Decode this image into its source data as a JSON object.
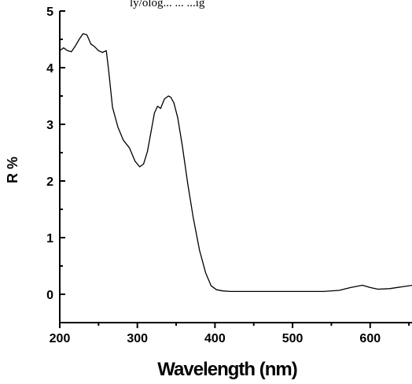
{
  "chart_data": {
    "type": "line",
    "top_text": "ly/olog... ... ...ig",
    "xlabel": "Wavelength (nm)",
    "ylabel": "R %",
    "xlim": [
      200,
      660
    ],
    "ylim": [
      -0.5,
      5
    ],
    "x_ticks": [
      200,
      300,
      400,
      500,
      600
    ],
    "y_ticks": [
      0,
      1,
      2,
      3,
      4,
      5
    ],
    "grid": false,
    "series": [
      {
        "x": [
          200,
          205,
          210,
          215,
          220,
          225,
          230,
          235,
          240,
          245,
          250,
          255,
          260,
          263,
          268,
          275,
          282,
          290,
          297,
          303,
          308,
          313,
          318,
          322,
          326,
          330,
          335,
          340,
          343,
          347,
          352,
          358,
          365,
          372,
          380,
          388,
          395,
          402,
          410,
          420,
          440,
          460,
          500,
          540,
          560,
          575,
          590,
          600,
          610,
          625,
          640,
          660
        ],
        "y": [
          4.3,
          4.35,
          4.3,
          4.28,
          4.38,
          4.5,
          4.6,
          4.58,
          4.42,
          4.37,
          4.3,
          4.27,
          4.3,
          3.95,
          3.3,
          2.95,
          2.72,
          2.58,
          2.35,
          2.25,
          2.3,
          2.52,
          2.9,
          3.2,
          3.32,
          3.28,
          3.45,
          3.5,
          3.48,
          3.38,
          3.12,
          2.62,
          1.95,
          1.35,
          0.78,
          0.38,
          0.15,
          0.08,
          0.06,
          0.05,
          0.05,
          0.05,
          0.05,
          0.05,
          0.07,
          0.12,
          0.16,
          0.12,
          0.09,
          0.1,
          0.13,
          0.17
        ]
      }
    ]
  }
}
